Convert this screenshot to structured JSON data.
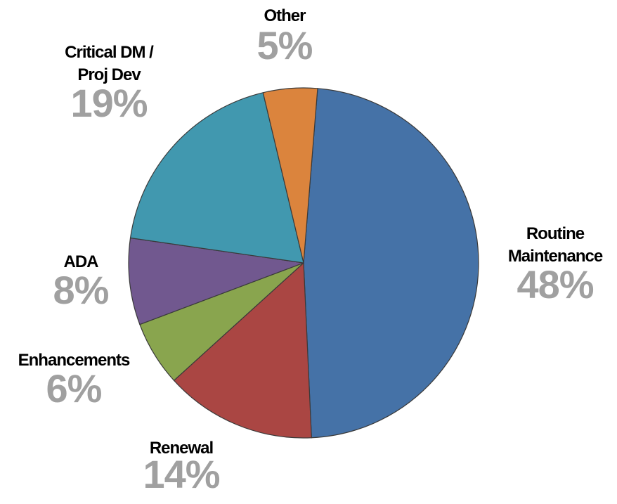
{
  "chart_data": {
    "type": "pie",
    "categories": [
      "Routine Maintenance",
      "Renewal",
      "Enhancements",
      "ADA",
      "Critical DM / Proj Dev",
      "Other"
    ],
    "values": [
      48,
      14,
      6,
      8,
      19,
      5
    ],
    "value_labels": [
      "48%",
      "14%",
      "6%",
      "8%",
      "19%",
      "5%"
    ],
    "colors": [
      "#4572a7",
      "#aa4643",
      "#89a54e",
      "#71588f",
      "#4198af",
      "#db843d"
    ]
  }
}
